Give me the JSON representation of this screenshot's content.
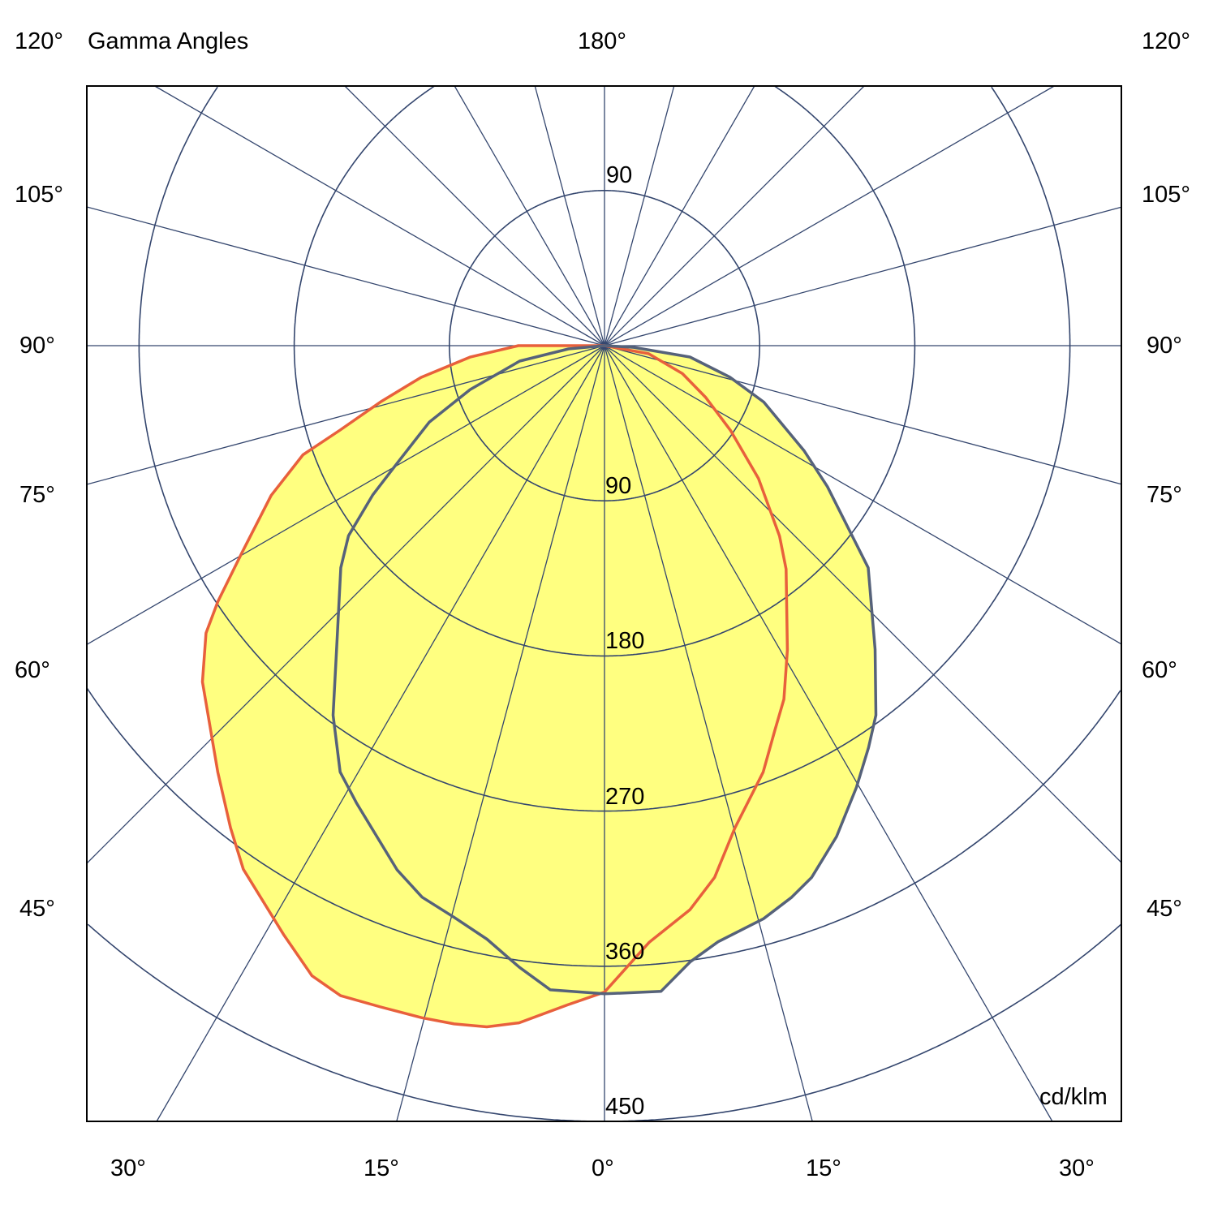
{
  "chart_data": {
    "type": "polar",
    "title": "Gamma Angles",
    "unit": "cd/klm",
    "radial_ticks": [
      90,
      180,
      270,
      360,
      450
    ],
    "radial_range": [
      0,
      450
    ],
    "angle_grid_step_deg": 15,
    "angle_labels": {
      "top": "180°",
      "top_left": "120°",
      "top_right": "120°",
      "left": [
        "105°",
        "90°",
        "75°",
        "60°",
        "45°"
      ],
      "right": [
        "105°",
        "90°",
        "75°",
        "60°",
        "45°"
      ],
      "bottom": [
        "30°",
        "15°",
        "0°",
        "15°",
        "30°"
      ]
    },
    "upper_radial_label": "90",
    "fill_color": "#ffff80",
    "grid_color": "#34466e",
    "series": [
      {
        "color": "#e8603c",
        "points": [
          [
            -90,
            50
          ],
          [
            -85.2,
            78
          ],
          [
            -80.2,
            108
          ],
          [
            -75.9,
            134
          ],
          [
            -72.3,
            161
          ],
          [
            -70.1,
            186
          ],
          [
            -65.8,
            212
          ],
          [
            -60.3,
            242
          ],
          [
            -56.5,
            269
          ],
          [
            -54.2,
            285
          ],
          [
            -50.1,
            304
          ],
          [
            -42.2,
            334
          ],
          [
            -37.8,
            354
          ],
          [
            -34.6,
            369
          ],
          [
            -28.6,
            389
          ],
          [
            -24.9,
            403
          ],
          [
            -22.1,
            407
          ],
          [
            -18.7,
            405
          ],
          [
            -15.2,
            404
          ],
          [
            -12.5,
            403
          ],
          [
            -9.8,
            401
          ],
          [
            -7.2,
            396
          ],
          [
            -3.2,
            383
          ],
          [
            0,
            375
          ],
          [
            4.3,
            347
          ],
          [
            8.6,
            331
          ],
          [
            11.7,
            315
          ],
          [
            15.1,
            290
          ],
          [
            20.4,
            264
          ],
          [
            23.9,
            244
          ],
          [
            26.9,
            230
          ],
          [
            31,
            206
          ],
          [
            39.1,
            167
          ],
          [
            42.6,
            150
          ],
          [
            49.2,
            118
          ],
          [
            56.1,
            88
          ],
          [
            62.9,
            66
          ],
          [
            70.3,
            48
          ],
          [
            79.7,
            26
          ],
          [
            90,
            0
          ]
        ]
      },
      {
        "color": "#56627a",
        "points": [
          [
            -90,
            0
          ],
          [
            -84.9,
            21
          ],
          [
            -79.7,
            50
          ],
          [
            -71.9,
            82
          ],
          [
            -66.4,
            111
          ],
          [
            -60.5,
            138
          ],
          [
            -57.2,
            160
          ],
          [
            -53.4,
            185
          ],
          [
            -49.9,
            200
          ],
          [
            -41.4,
            235
          ],
          [
            -36.3,
            266
          ],
          [
            -31.8,
            291
          ],
          [
            -28.4,
            302
          ],
          [
            -21.6,
            327
          ],
          [
            -18.3,
            337
          ],
          [
            -14.7,
            343
          ],
          [
            -11.2,
            351
          ],
          [
            -7.8,
            364
          ],
          [
            -4.8,
            375
          ],
          [
            0,
            376
          ],
          [
            5,
            376
          ],
          [
            7.9,
            361
          ],
          [
            10.8,
            352
          ],
          [
            15.5,
            345
          ],
          [
            18.7,
            338
          ],
          [
            21.3,
            331
          ],
          [
            25.3,
            315
          ],
          [
            29.7,
            295
          ],
          [
            33.3,
            279
          ],
          [
            36.3,
            266
          ],
          [
            41.7,
            236
          ],
          [
            49.9,
            200
          ],
          [
            52.5,
            181
          ],
          [
            57.7,
            153
          ],
          [
            62.2,
            131
          ],
          [
            70.5,
            98
          ],
          [
            75.9,
            75
          ],
          [
            82.4,
            50
          ],
          [
            86.7,
            17
          ],
          [
            90,
            0
          ]
        ]
      }
    ]
  }
}
